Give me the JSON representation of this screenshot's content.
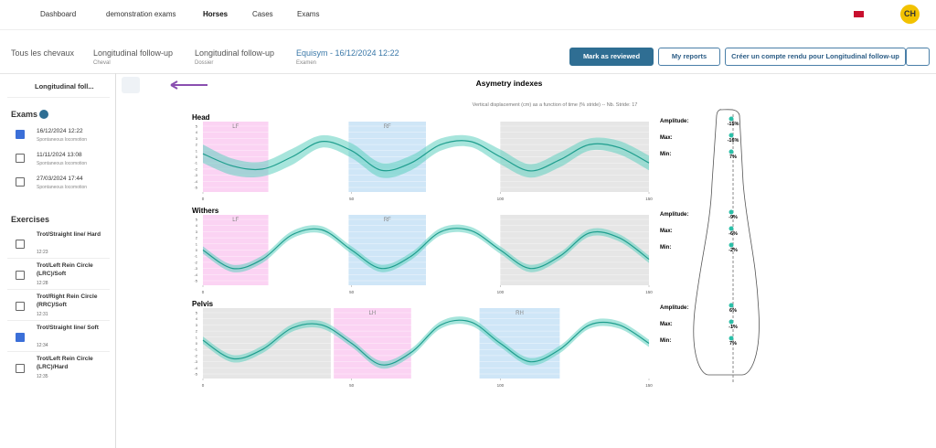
{
  "nav": {
    "items": [
      "Dashboard",
      "demonstration exams",
      "Horses",
      "Cases",
      "Exams"
    ],
    "avatar": "CH"
  },
  "breadcrumbs": [
    {
      "title": "Tous les chevaux"
    },
    {
      "title": "Longitudinal follow-up",
      "sub": "Cheval"
    },
    {
      "title": "Longitudinal follow-up",
      "sub": "Dossier"
    },
    {
      "title": "Equisym - 16/12/2024 12:22",
      "sub": "Examen"
    }
  ],
  "buttons": [
    "Mark as reviewed",
    "My reports",
    "Créer un compte rendu pour Longitudinal follow-up"
  ],
  "sidebar": {
    "horse": "Longitudinal foll...",
    "exams_title": "Exams",
    "exams": [
      {
        "date": "16/12/2024 12:22",
        "sub": "Spontaneous locomotion",
        "checked": true
      },
      {
        "date": "11/11/2024 13:08",
        "sub": "Spontaneous locomotion",
        "checked": false
      },
      {
        "date": "27/03/2024 17:44",
        "sub": "Spontaneous locomotion",
        "checked": false
      }
    ],
    "exercises_title": "Exercises",
    "exercises": [
      {
        "name": "Trot/Straight line/ Hard",
        "time": "12:23",
        "checked": false
      },
      {
        "name": "Trot/Left Rein Circle (LRC)/Soft",
        "time": "12:28",
        "checked": false
      },
      {
        "name": "Trot/Right Rein Circle (RRC)/Soft",
        "time": "12:31",
        "checked": false
      },
      {
        "name": "Trot/Straight line/ Soft",
        "time": "12:34",
        "checked": true
      },
      {
        "name": "Trot/Left Rein Circle (LRC)/Hard",
        "time": "12:35",
        "checked": false
      }
    ]
  },
  "panel": {
    "title": "Asymetry indexes",
    "subtitle": "Vertical displacement (cm) as a function of time (% stride) -- Nb. Stride: 17",
    "charts": [
      {
        "type": "line",
        "title": "Head",
        "x": [
          0,
          10,
          20,
          30,
          40,
          50,
          60,
          70,
          80,
          90,
          100,
          110,
          120,
          130,
          140,
          150
        ],
        "xlim": [
          0,
          150
        ],
        "xticks": [
          0,
          50,
          100,
          150
        ],
        "ylim": [
          -5,
          5
        ],
        "yticks": [
          5,
          4,
          3,
          2,
          1,
          0,
          -1,
          -2,
          -3,
          -4,
          -5
        ],
        "mean": [
          0.5,
          -1.5,
          -2,
          0,
          2.5,
          1,
          -2.2,
          -1,
          2,
          2.5,
          0,
          -2.3,
          -0.5,
          2,
          1.5,
          -1
        ],
        "upper": [
          2,
          -0.3,
          -0.8,
          1.3,
          3.5,
          2.2,
          -1,
          0.2,
          3,
          3.4,
          1.2,
          -1.2,
          0.7,
          3,
          2.6,
          0.2
        ],
        "lower": [
          -1,
          -3,
          -3.2,
          -1.3,
          1.5,
          -0.2,
          -3.4,
          -2.2,
          1,
          1.6,
          -1.2,
          -3.4,
          -1.7,
          1,
          0.4,
          -2.2
        ],
        "regions": [
          {
            "label": "LF",
            "start": 0,
            "end": 22,
            "color": "#fbd3f3"
          },
          {
            "label": "RF",
            "start": 49,
            "end": 75,
            "color": "#cfe6f7"
          },
          {
            "start": 100,
            "end": 150,
            "color": "#e6e6e6"
          }
        ],
        "stats": [
          {
            "label": "Amplitude:",
            "value": "-15%"
          },
          {
            "label": "Max:",
            "value": "-16%"
          },
          {
            "label": "Min:",
            "value": "7%"
          }
        ]
      },
      {
        "type": "line",
        "title": "Withers",
        "x": [
          0,
          10,
          20,
          30,
          40,
          50,
          60,
          70,
          80,
          90,
          100,
          110,
          120,
          130,
          140,
          150
        ],
        "xlim": [
          0,
          150
        ],
        "xticks": [
          0,
          50,
          100,
          150
        ],
        "ylim": [
          -5,
          5
        ],
        "yticks": [
          5,
          4,
          3,
          2,
          1,
          0,
          -1,
          -2,
          -3,
          -4,
          -5
        ],
        "mean": [
          0,
          -3,
          -1.5,
          2.5,
          3.3,
          0,
          -3,
          -1,
          3,
          3.2,
          0,
          -3,
          -1,
          2.8,
          2,
          -1.5
        ],
        "upper": [
          0.6,
          -2.4,
          -0.9,
          3.1,
          3.9,
          0.6,
          -2.4,
          -0.4,
          3.6,
          3.8,
          0.6,
          -2.4,
          -0.4,
          3.4,
          2.6,
          -0.9
        ],
        "lower": [
          -0.6,
          -3.6,
          -2.1,
          1.9,
          2.7,
          -0.6,
          -3.6,
          -1.6,
          2.4,
          2.6,
          -0.6,
          -3.6,
          -1.6,
          2.2,
          1.4,
          -2.1
        ],
        "regions": [
          {
            "label": "LF",
            "start": 0,
            "end": 22,
            "color": "#fbd3f3"
          },
          {
            "label": "RF",
            "start": 49,
            "end": 75,
            "color": "#cfe6f7"
          },
          {
            "start": 100,
            "end": 150,
            "color": "#e6e6e6"
          }
        ],
        "stats": [
          {
            "label": "Amplitude:",
            "value": "-9%"
          },
          {
            "label": "Max:",
            "value": "-6%"
          },
          {
            "label": "Min:",
            "value": "-2%"
          }
        ]
      },
      {
        "type": "line",
        "title": "Pelvis",
        "x": [
          0,
          10,
          20,
          30,
          40,
          50,
          60,
          70,
          80,
          90,
          100,
          110,
          120,
          130,
          140,
          150
        ],
        "xlim": [
          0,
          150
        ],
        "xticks": [
          0,
          50,
          100,
          150
        ],
        "ylim": [
          -5,
          5
        ],
        "yticks": [
          5,
          4,
          3,
          2,
          1,
          0,
          -1,
          -2,
          -3,
          -4,
          -5
        ],
        "mean": [
          0.5,
          -2.5,
          -1,
          2.5,
          3,
          0,
          -3.5,
          -1.5,
          3,
          3.5,
          0,
          -3,
          -1,
          3,
          3,
          0
        ],
        "upper": [
          1.1,
          -1.9,
          -0.4,
          3.1,
          3.6,
          0.6,
          -2.9,
          -0.9,
          3.6,
          4.1,
          0.6,
          -2.4,
          -0.4,
          3.6,
          3.6,
          0.6
        ],
        "lower": [
          -0.1,
          -3.1,
          -1.6,
          1.9,
          2.4,
          -0.6,
          -4.1,
          -2.1,
          2.4,
          2.9,
          -0.6,
          -3.6,
          -1.6,
          2.4,
          2.4,
          -0.6
        ],
        "regions": [
          {
            "start": 0,
            "end": 43,
            "color": "#e6e6e6"
          },
          {
            "label": "LH",
            "start": 44,
            "end": 70,
            "color": "#fbd3f3"
          },
          {
            "label": "RH",
            "start": 93,
            "end": 120,
            "color": "#cfe6f7"
          }
        ],
        "stats": [
          {
            "label": "Amplitude:",
            "value": "6%"
          },
          {
            "label": "Max:",
            "value": "-1%"
          },
          {
            "label": "Min:",
            "value": "7%"
          }
        ]
      }
    ]
  }
}
